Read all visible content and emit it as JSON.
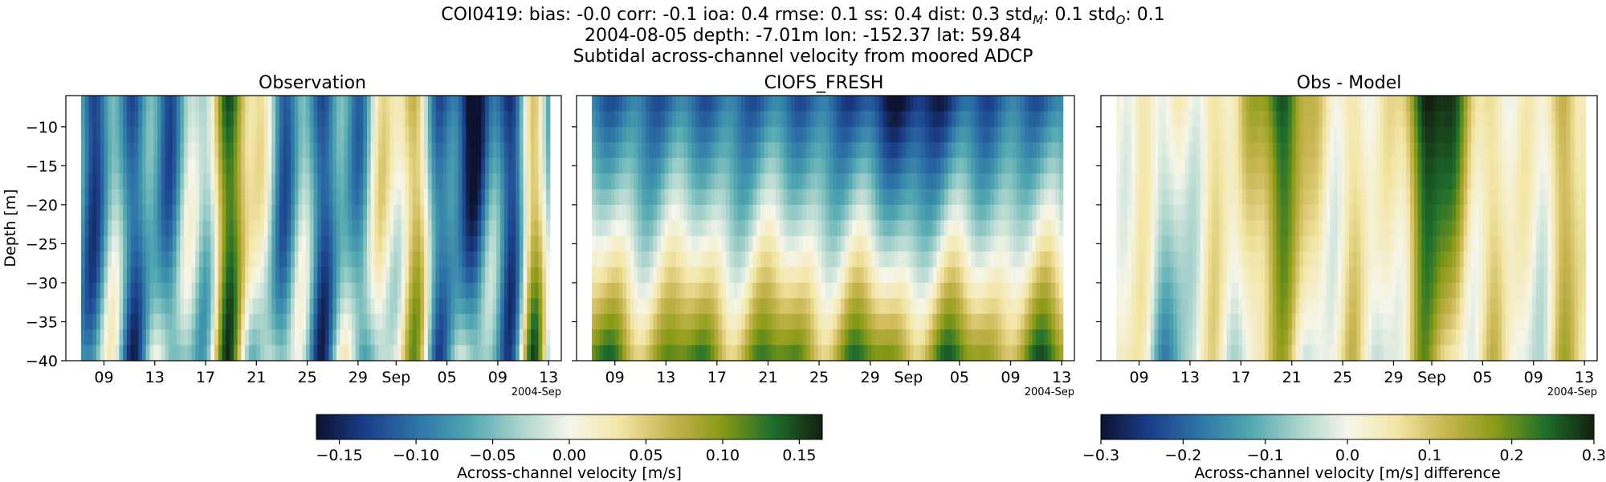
{
  "title": {
    "line1": "COI0419: bias: -0.0  corr: -0.1  ioa: 0.4  rmse: 0.1  ss: 0.4  dist: 0.3  std",
    "std_m_sub": "M",
    "std_m_val": ": 0.1  std",
    "std_o_sub": "O",
    "std_o_val": ": 0.1",
    "line2": "2004-08-05 depth: -7.01m lon: -152.37 lat: 59.84",
    "line3": "Subtidal across-channel velocity from moored ADCP"
  },
  "colors": {
    "cmap_stops": [
      "#0c1230",
      "#1b3f8a",
      "#2e75a8",
      "#4fa6b0",
      "#a8d3cc",
      "#f6f6ea",
      "#f3e6a6",
      "#c8b550",
      "#8a9b16",
      "#1f6f2c",
      "#13200f"
    ]
  },
  "chart_data": [
    {
      "type": "heatmap",
      "title": "Observation",
      "ylabel": "Depth [m]",
      "yticks": [
        -10,
        -15,
        -20,
        -25,
        -30,
        -35,
        -40
      ],
      "ylim": [
        -40,
        -6
      ],
      "xticks": [
        "09",
        "13",
        "17",
        "21",
        "25",
        "29",
        "Sep",
        "05",
        "09",
        "13"
      ],
      "x_offset_label": "2004-Sep",
      "x_range_days": [
        "2004-08-06",
        "2004-09-14"
      ],
      "vrange": [
        -0.165,
        0.165
      ],
      "pattern": "observation"
    },
    {
      "type": "heatmap",
      "title": "CIOFS_FRESH",
      "ylabel": "",
      "yticks": [
        -10,
        -15,
        -20,
        -25,
        -30,
        -35,
        -40
      ],
      "ylim": [
        -40,
        -6
      ],
      "xticks": [
        "09",
        "13",
        "17",
        "21",
        "25",
        "29",
        "Sep",
        "05",
        "09",
        "13"
      ],
      "x_offset_label": "2004-Sep",
      "x_range_days": [
        "2004-08-06",
        "2004-09-14"
      ],
      "vrange": [
        -0.165,
        0.165
      ],
      "pattern": "model"
    },
    {
      "type": "heatmap",
      "title": "Obs - Model",
      "ylabel": "",
      "yticks": [
        -10,
        -15,
        -20,
        -25,
        -30,
        -35,
        -40
      ],
      "ylim": [
        -40,
        -6
      ],
      "xticks": [
        "09",
        "13",
        "17",
        "21",
        "25",
        "29",
        "Sep",
        "05",
        "09",
        "13"
      ],
      "x_offset_label": "2004-Sep",
      "x_range_days": [
        "2004-08-06",
        "2004-09-14"
      ],
      "vrange": [
        -0.3,
        0.3
      ],
      "pattern": "difference"
    }
  ],
  "colorbars": [
    {
      "label": "Across-channel velocity [m/s]",
      "ticks": [
        "−0.15",
        "−0.10",
        "−0.05",
        "0.00",
        "0.05",
        "0.10",
        "0.15"
      ],
      "tick_values": [
        -0.15,
        -0.1,
        -0.05,
        0.0,
        0.05,
        0.1,
        0.15
      ],
      "vrange": [
        -0.165,
        0.165
      ]
    },
    {
      "label": "Across-channel velocity [m/s] difference",
      "ticks": [
        "−0.3",
        "−0.2",
        "−0.1",
        "0.0",
        "0.1",
        "0.2",
        "0.3"
      ],
      "tick_values": [
        -0.3,
        -0.2,
        -0.1,
        0.0,
        0.1,
        0.2,
        0.3
      ],
      "vrange": [
        -0.3,
        0.3
      ]
    }
  ]
}
